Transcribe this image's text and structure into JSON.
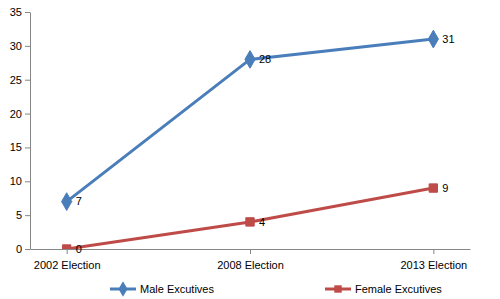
{
  "chart_data": {
    "type": "line",
    "categories": [
      "2002 Election",
      "2008 Election",
      "2013 Election"
    ],
    "series": [
      {
        "name": "Male Excutives",
        "color": "#4a7ebb",
        "marker": "diamond",
        "values": [
          7,
          28,
          31
        ]
      },
      {
        "name": "Female Excutives",
        "color": "#be4b48",
        "marker": "square",
        "values": [
          0,
          4,
          9
        ]
      }
    ],
    "ylim": [
      0,
      35
    ],
    "yticks": [
      0,
      5,
      10,
      15,
      20,
      25,
      30,
      35
    ],
    "grid": false,
    "legend": "bottom",
    "data_labels": true
  }
}
